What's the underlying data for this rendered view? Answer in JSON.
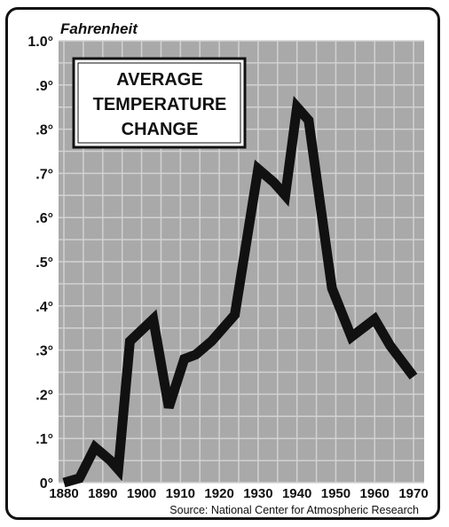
{
  "chart_data": {
    "type": "line",
    "title_lines": [
      "AVERAGE",
      "TEMPERATURE",
      "CHANGE"
    ],
    "unit_label": "Fahrenheit",
    "source": "Source: National Center for Atmospheric Research",
    "x_tick_labels": [
      "1880",
      "1890",
      "1900",
      "1910",
      "1920",
      "1930",
      "1940",
      "1950",
      "1960",
      "1970"
    ],
    "y_tick_labels": [
      "0°",
      ".1°",
      ".2°",
      ".3°",
      ".4°",
      ".5°",
      ".6°",
      ".7°",
      ".8°",
      ".9°",
      "1.0°"
    ],
    "xlim": [
      1880,
      1972
    ],
    "ylim": [
      0,
      1.0
    ],
    "grid": true,
    "colors": {
      "line": "#111111",
      "plot_bg": "#a9a9a9",
      "grid": "#d2d2d2"
    },
    "series": [
      {
        "x": [
          1880,
          1884,
          1888,
          1892,
          1894,
          1897,
          1903,
          1907,
          1911,
          1914,
          1918,
          1924,
          1930,
          1934,
          1937,
          1940,
          1943,
          1946,
          1949,
          1954,
          1957,
          1960,
          1964,
          1970
        ],
        "y": [
          0.0,
          0.01,
          0.08,
          0.05,
          0.03,
          0.32,
          0.37,
          0.17,
          0.28,
          0.29,
          0.32,
          0.38,
          0.71,
          0.68,
          0.65,
          0.85,
          0.82,
          0.63,
          0.44,
          0.33,
          0.35,
          0.37,
          0.31,
          0.24
        ]
      }
    ]
  }
}
